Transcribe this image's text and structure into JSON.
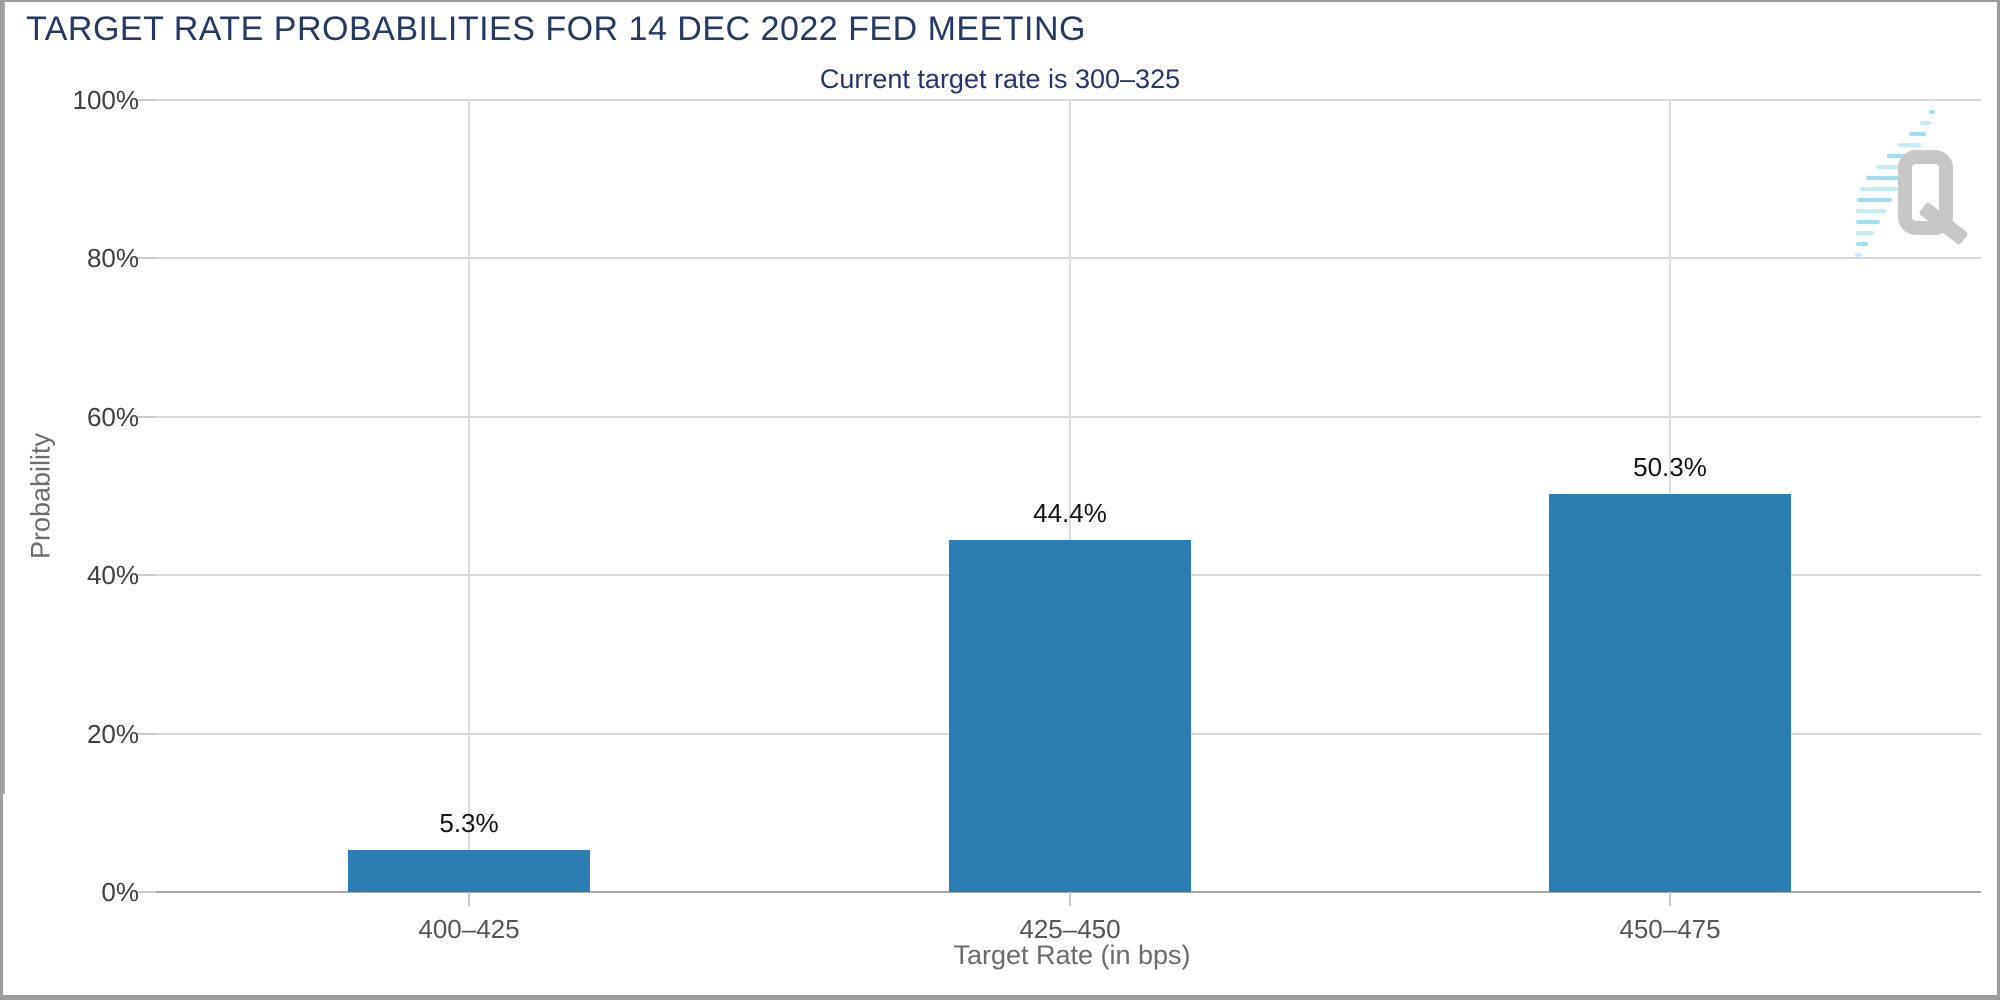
{
  "header": {
    "title": "TARGET RATE PROBABILITIES FOR 14 DEC 2022 FED MEETING",
    "subtitle": "Current target rate is 300–325"
  },
  "logo": {
    "letter": "Q"
  },
  "colors": {
    "title_navy": "#243a63",
    "subtitle_navy": "#27356b",
    "bar_blue": "#2d7db5",
    "gridline": "#d8d8d8",
    "axis_line": "#a8a8a8",
    "tick_label": "#3f3f3f",
    "category_label": "#555555",
    "axis_title_gray": "#6b6b6b",
    "value_label": "#141414",
    "frame_border": "#9c9c9c",
    "logo_gray": "#c7c7c7",
    "logo_cyan": "#9fdef2"
  },
  "chart_data": {
    "type": "bar",
    "title": "TARGET RATE PROBABILITIES FOR 14 DEC 2022 FED MEETING",
    "subtitle": "Current target rate is 300–325",
    "categories": [
      "400–425",
      "425–450",
      "450–475"
    ],
    "values": [
      5.3,
      44.4,
      50.3
    ],
    "value_labels": [
      "5.3%",
      "44.4%",
      "50.3%"
    ],
    "xlabel": "Target Rate (in bps)",
    "ylabel": "Probability",
    "ylim": [
      0,
      100
    ],
    "yticks": [
      0,
      20,
      40,
      60,
      80,
      100
    ],
    "ytick_labels": [
      "0%",
      "20%",
      "40%",
      "60%",
      "80%",
      "100%"
    ],
    "grid": true,
    "legend": false,
    "bar_color": "#2d7db5"
  }
}
